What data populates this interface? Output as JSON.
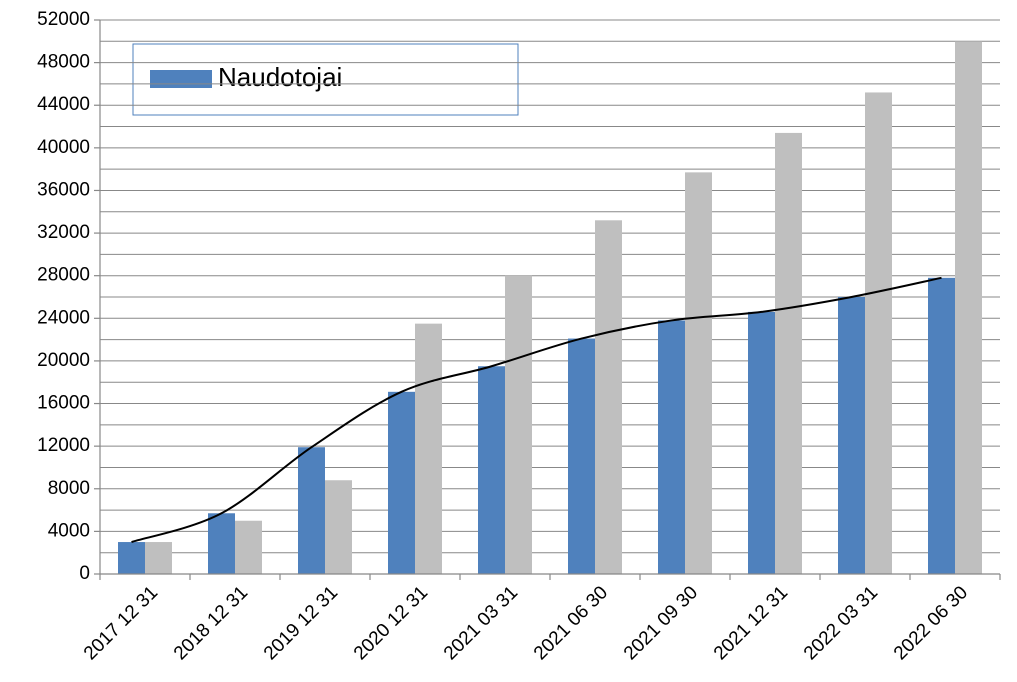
{
  "chart_data": {
    "type": "bar",
    "categories": [
      "2017 12 31",
      "2018 12 31",
      "2019 12 31",
      "2020 12 31",
      "2021 03 31",
      "2021 06 30",
      "2021 09 30",
      "2021 12 31",
      "2022 03 31",
      "2022 06 30"
    ],
    "series": [
      {
        "name": "Naudotojai",
        "color": "#4f81bd",
        "values": [
          3000,
          5700,
          11900,
          17100,
          19500,
          22100,
          23800,
          24600,
          26000,
          27800
        ]
      },
      {
        "color": "#bfbfbf",
        "values": [
          3000,
          5000,
          8800,
          23500,
          28000,
          33200,
          37700,
          41400,
          45200,
          50000
        ]
      }
    ],
    "trendline": true,
    "ylim": [
      0,
      52000
    ],
    "yticks": [
      0,
      4000,
      8000,
      12000,
      16000,
      20000,
      24000,
      28000,
      32000,
      36000,
      40000,
      44000,
      48000,
      52000
    ],
    "grid": true,
    "legend": "top-left"
  }
}
